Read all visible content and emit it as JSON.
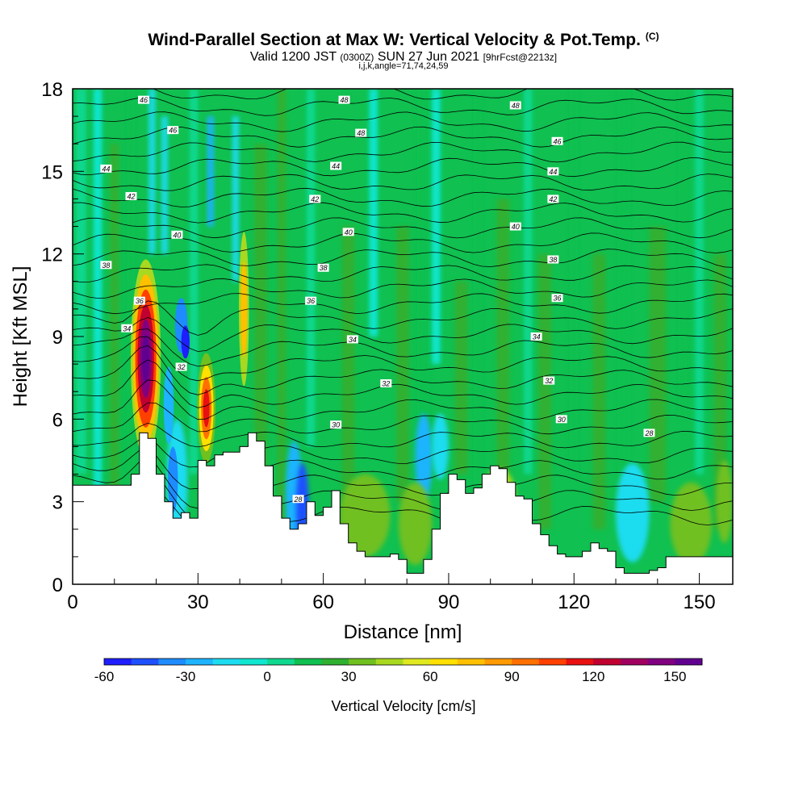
{
  "title": "Wind-Parallel Section at Max W: Vertical Velocity & Pot.Temp.",
  "copyright_mark": "(C)",
  "subtitle": {
    "valid": "Valid 1200 JST",
    "utc": "(0300Z)",
    "date": "SUN 27 Jun 2021",
    "forecast": "[9hrFcst@2213z]",
    "indices": "i,j,k,angle=71,74,24,59"
  },
  "chart_data": {
    "type": "heatmap",
    "xlabel": "Distance [nm]",
    "ylabel": "Height [Kft MSL]",
    "xlim": [
      0,
      158
    ],
    "ylim": [
      0,
      18
    ],
    "xticks": [
      0,
      30,
      60,
      90,
      120,
      150
    ],
    "yticks": [
      0,
      3,
      6,
      9,
      12,
      15,
      18
    ],
    "colorbar": {
      "label": "Vertical Velocity [cm/s]",
      "ticks": [
        -60,
        -30,
        0,
        30,
        60,
        90,
        120,
        150
      ],
      "range": [
        -60,
        160
      ],
      "colors": [
        "#1e1eff",
        "#1e50ff",
        "#1e8cff",
        "#1eb4ff",
        "#1edcf0",
        "#10e6d0",
        "#10d890",
        "#10c050",
        "#30b030",
        "#70c020",
        "#a8d820",
        "#e0e820",
        "#ffe000",
        "#ffc000",
        "#ff9a00",
        "#ff7000",
        "#ff4000",
        "#e81010",
        "#c00030",
        "#a00060",
        "#800080",
        "#600090"
      ]
    },
    "terrain": {
      "x": [
        0,
        2,
        4,
        6,
        8,
        10,
        12,
        14,
        16,
        18,
        20,
        22,
        24,
        26,
        28,
        30,
        32,
        34,
        36,
        38,
        40,
        42,
        44,
        46,
        48,
        50,
        52,
        54,
        56,
        58,
        60,
        62,
        64,
        66,
        68,
        70,
        72,
        74,
        76,
        78,
        80,
        82,
        84,
        86,
        88,
        90,
        92,
        94,
        96,
        98,
        100,
        102,
        104,
        106,
        108,
        110,
        112,
        114,
        116,
        118,
        120,
        122,
        124,
        126,
        128,
        130,
        132,
        134,
        136,
        138,
        140,
        142,
        144,
        146,
        148,
        150,
        152,
        154,
        156,
        158
      ],
      "height": [
        3.6,
        3.6,
        3.6,
        3.6,
        3.6,
        3.6,
        3.6,
        4.0,
        5.5,
        5.3,
        4.0,
        3.0,
        2.4,
        2.6,
        2.4,
        4.5,
        4.3,
        4.7,
        4.8,
        4.8,
        5.0,
        5.5,
        5.2,
        4.3,
        3.2,
        2.4,
        2.0,
        2.2,
        3.0,
        2.5,
        2.8,
        3.4,
        2.2,
        1.5,
        1.2,
        1.0,
        1.0,
        1.0,
        1.1,
        0.9,
        0.4,
        0.4,
        0.9,
        2.0,
        3.3,
        4.0,
        3.8,
        3.3,
        3.5,
        4.0,
        4.3,
        4.2,
        3.7,
        3.2,
        3.1,
        2.2,
        1.8,
        1.4,
        1.1,
        1.0,
        1.0,
        1.2,
        1.5,
        1.3,
        1.2,
        0.6,
        0.4,
        0.4,
        0.4,
        0.5,
        0.6,
        1.0,
        1.0,
        1.0,
        1.0,
        1.0,
        1.0,
        1.0,
        1.0,
        1.0
      ]
    },
    "theta_labels": [
      {
        "x": 17,
        "y": 17.6,
        "v": "46"
      },
      {
        "x": 24,
        "y": 16.5,
        "v": "46"
      },
      {
        "x": 8,
        "y": 15.1,
        "v": "44"
      },
      {
        "x": 14,
        "y": 14.1,
        "v": "42"
      },
      {
        "x": 25,
        "y": 12.7,
        "v": "40"
      },
      {
        "x": 8,
        "y": 11.6,
        "v": "38"
      },
      {
        "x": 16,
        "y": 10.3,
        "v": "36"
      },
      {
        "x": 13,
        "y": 9.3,
        "v": "34"
      },
      {
        "x": 26,
        "y": 7.9,
        "v": "32"
      },
      {
        "x": 65,
        "y": 17.6,
        "v": "48"
      },
      {
        "x": 69,
        "y": 16.4,
        "v": "48"
      },
      {
        "x": 63,
        "y": 15.2,
        "v": "44"
      },
      {
        "x": 58,
        "y": 14.0,
        "v": "42"
      },
      {
        "x": 66,
        "y": 12.8,
        "v": "40"
      },
      {
        "x": 60,
        "y": 11.5,
        "v": "38"
      },
      {
        "x": 57,
        "y": 10.3,
        "v": "36"
      },
      {
        "x": 67,
        "y": 8.9,
        "v": "34"
      },
      {
        "x": 75,
        "y": 7.3,
        "v": "32"
      },
      {
        "x": 63,
        "y": 5.8,
        "v": "30"
      },
      {
        "x": 54,
        "y": 3.1,
        "v": "28"
      },
      {
        "x": 106,
        "y": 17.4,
        "v": "48"
      },
      {
        "x": 116,
        "y": 16.1,
        "v": "46"
      },
      {
        "x": 115,
        "y": 15.0,
        "v": "44"
      },
      {
        "x": 115,
        "y": 14.0,
        "v": "42"
      },
      {
        "x": 106,
        "y": 13.0,
        "v": "40"
      },
      {
        "x": 115,
        "y": 11.8,
        "v": "38"
      },
      {
        "x": 116,
        "y": 10.4,
        "v": "36"
      },
      {
        "x": 111,
        "y": 9.0,
        "v": "34"
      },
      {
        "x": 114,
        "y": 7.4,
        "v": "32"
      },
      {
        "x": 117,
        "y": 6.0,
        "v": "30"
      },
      {
        "x": 138,
        "y": 5.5,
        "v": "28"
      }
    ]
  }
}
